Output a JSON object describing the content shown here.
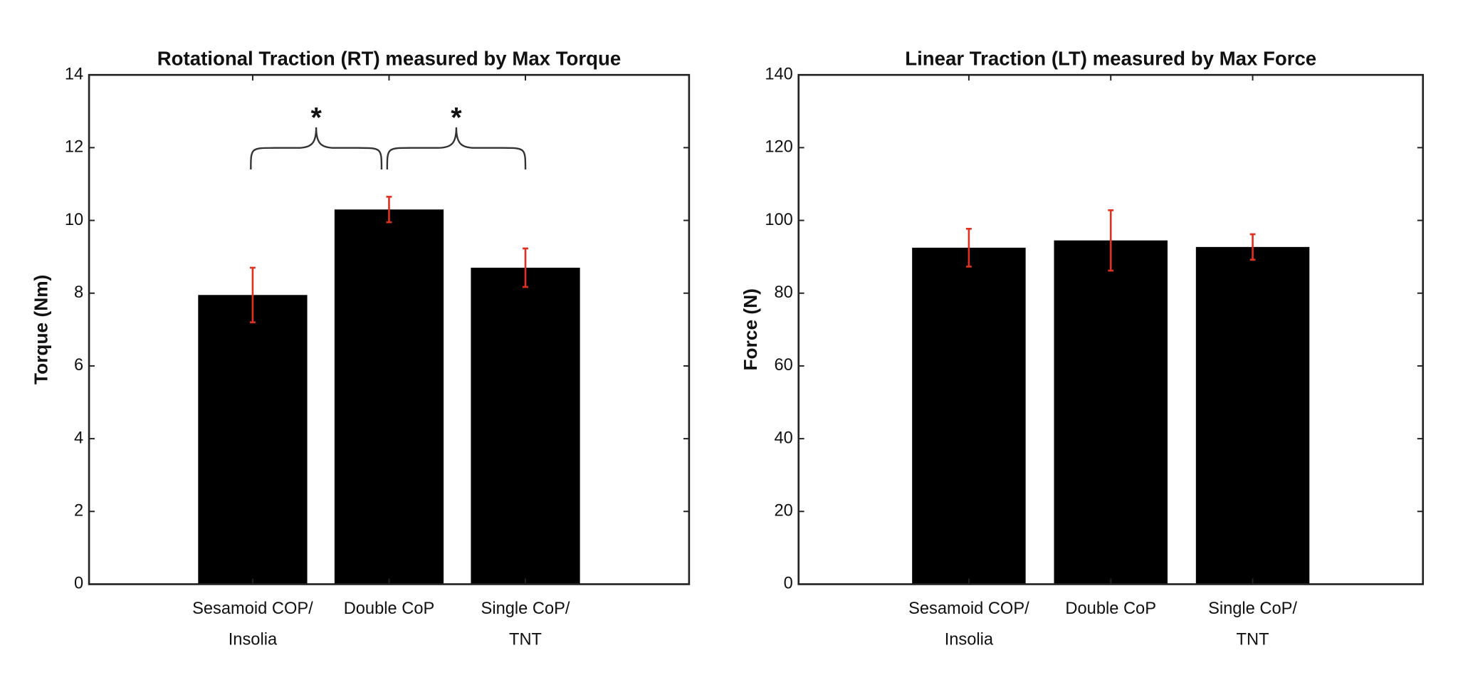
{
  "chart_data": [
    {
      "type": "bar",
      "title": "Rotational Traction (RT) measured by Max Torque",
      "y_label": "Torque (Nm)",
      "categories": [
        [
          "Sesamoid COP/",
          "Insolia"
        ],
        [
          "Double CoP"
        ],
        [
          "Single CoP/",
          "TNT"
        ]
      ],
      "values": [
        7.95,
        10.3,
        8.7
      ],
      "errors": [
        0.75,
        0.35,
        0.53
      ],
      "color": "#000000",
      "error_color": "#e0301e",
      "ylim": [
        0,
        14
      ],
      "yticks": [
        0,
        2,
        4,
        6,
        8,
        10,
        12,
        14
      ],
      "annotations": [
        "*",
        "*"
      ]
    },
    {
      "type": "bar",
      "title": "Linear Traction (LT) measured by Max Force",
      "y_label": "Force (N)",
      "categories": [
        [
          "Sesamoid COP/",
          "Insolia"
        ],
        [
          "Double CoP"
        ],
        [
          "Single CoP/",
          "TNT"
        ]
      ],
      "values": [
        92.5,
        94.5,
        92.7
      ],
      "errors": [
        5.2,
        8.3,
        3.5
      ],
      "color": "#000000",
      "error_color": "#e0301e",
      "ylim": [
        0,
        140
      ],
      "yticks": [
        0,
        20,
        40,
        60,
        80,
        100,
        120,
        140
      ]
    }
  ]
}
